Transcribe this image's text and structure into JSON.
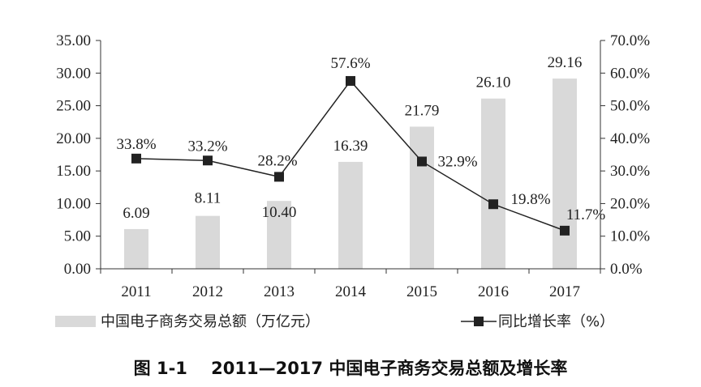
{
  "chart_data": {
    "type": "bar",
    "categories": [
      "2011",
      "2012",
      "2013",
      "2014",
      "2015",
      "2016",
      "2017"
    ],
    "series": [
      {
        "name": "中国电子商务交易总额（万亿元）",
        "type": "bar",
        "axis": "left",
        "color": "#d9d9d9",
        "values": [
          6.09,
          8.11,
          10.4,
          16.39,
          21.79,
          26.1,
          29.16
        ],
        "labels": [
          "6.09",
          "8.11",
          "10.40",
          "16.39",
          "21.79",
          "26.10",
          "29.16"
        ]
      },
      {
        "name": "同比增长率（%）",
        "type": "line",
        "axis": "right",
        "color": "#222222",
        "values": [
          33.8,
          33.2,
          28.2,
          57.6,
          32.9,
          19.8,
          11.7
        ],
        "labels": [
          "33.8%",
          "33.2%",
          "28.2%",
          "57.6%",
          "32.9%",
          "19.8%",
          "11.7%"
        ]
      }
    ],
    "y_left": {
      "ylim": [
        0,
        35
      ],
      "ticks": [
        "0.00",
        "5.00",
        "10.00",
        "15.00",
        "20.00",
        "25.00",
        "30.00",
        "35.00"
      ]
    },
    "y_right": {
      "ylim": [
        0,
        70
      ],
      "ticks": [
        "0.0%",
        "10.0%",
        "20.0%",
        "30.0%",
        "40.0%",
        "50.0%",
        "60.0%",
        "70.0%"
      ]
    },
    "grid": false,
    "legend_position": "bottom",
    "caption": "图 1-1    2011—2017 中国电子商务交易总额及增长率"
  }
}
